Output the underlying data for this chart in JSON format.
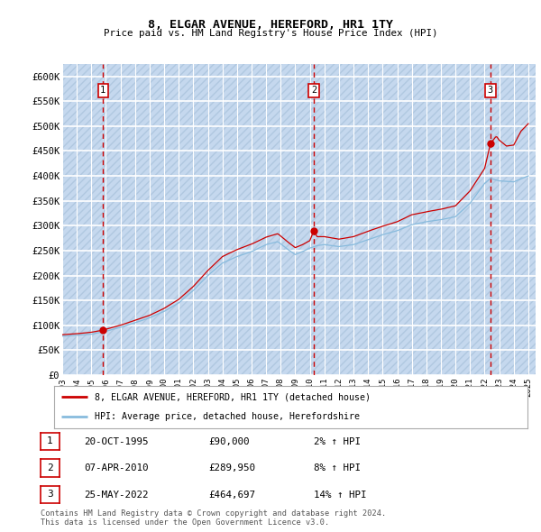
{
  "title": "8, ELGAR AVENUE, HEREFORD, HR1 1TY",
  "subtitle": "Price paid vs. HM Land Registry's House Price Index (HPI)",
  "ytick_vals": [
    0,
    50000,
    100000,
    150000,
    200000,
    250000,
    300000,
    350000,
    400000,
    450000,
    500000,
    550000,
    600000
  ],
  "ylim": [
    0,
    625000
  ],
  "xlim_start": 1993.0,
  "xlim_end": 2025.5,
  "xtick_years": [
    1993,
    1994,
    1995,
    1996,
    1997,
    1998,
    1999,
    2000,
    2001,
    2002,
    2003,
    2004,
    2005,
    2006,
    2007,
    2008,
    2009,
    2010,
    2011,
    2012,
    2013,
    2014,
    2015,
    2016,
    2017,
    2018,
    2019,
    2020,
    2021,
    2022,
    2023,
    2024,
    2025
  ],
  "background_color": "#dce9f7",
  "hatch_color": "#c5d8ee",
  "grid_color": "#ffffff",
  "sale_color": "#cc0000",
  "hpi_color": "#88bbdd",
  "vline_color": "#cc0000",
  "transactions": [
    {
      "num": 1,
      "date": "20-OCT-1995",
      "price": 90000,
      "hpi_pct": "2% ↑ HPI",
      "year": 1995.8
    },
    {
      "num": 2,
      "date": "07-APR-2010",
      "price": 289950,
      "hpi_pct": "8% ↑ HPI",
      "year": 2010.27
    },
    {
      "num": 3,
      "date": "25-MAY-2022",
      "price": 464697,
      "hpi_pct": "14% ↑ HPI",
      "year": 2022.4
    }
  ],
  "legend_label_sale": "8, ELGAR AVENUE, HEREFORD, HR1 1TY (detached house)",
  "legend_label_hpi": "HPI: Average price, detached house, Herefordshire",
  "footer": "Contains HM Land Registry data © Crown copyright and database right 2024.\nThis data is licensed under the Open Government Licence v3.0."
}
